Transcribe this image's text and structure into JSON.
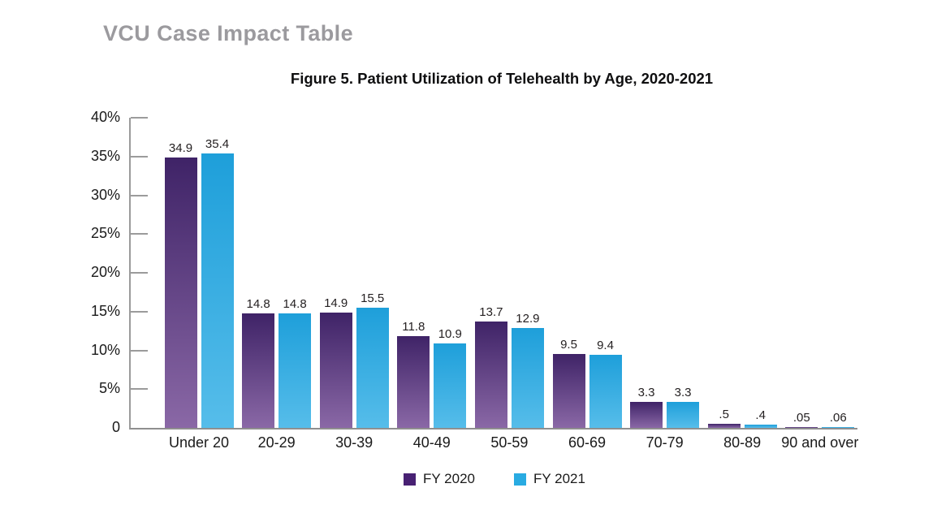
{
  "page": {
    "header": "VCU Case Impact Table"
  },
  "chart_data": {
    "type": "bar",
    "title": "Figure 5. Patient Utilization of Telehealth by Age, 2020-2021",
    "title_prefix": "Figure 5.",
    "title_rest": " Patient Utilization of Telehealth by Age, 2020-2021",
    "categories": [
      "Under 20",
      "20-29",
      "30-39",
      "40-49",
      "50-59",
      "60-69",
      "70-79",
      "80-89",
      "90 and over"
    ],
    "series": [
      {
        "name": "FY 2020",
        "color": "#482173",
        "gradient_top": "#3f2367",
        "gradient_bottom": "#8a68a6",
        "values": [
          34.9,
          14.8,
          14.9,
          11.8,
          13.7,
          9.5,
          3.3,
          0.5,
          0.05
        ],
        "value_labels": [
          "34.9",
          "14.8",
          "14.9",
          "11.8",
          "13.7",
          "9.5",
          "3.3",
          ".5",
          ".05"
        ]
      },
      {
        "name": "FY 2021",
        "color": "#29abe2",
        "gradient_top": "#1e9fda",
        "gradient_bottom": "#56bdea",
        "values": [
          35.4,
          14.8,
          15.5,
          10.9,
          12.9,
          9.4,
          3.3,
          0.4,
          0.06
        ],
        "value_labels": [
          "35.4",
          "14.8",
          "15.5",
          "10.9",
          "12.9",
          "9.4",
          "3.3",
          ".4",
          ".06"
        ]
      }
    ],
    "ylabel_ticks": [
      {
        "label": "40%",
        "value": 40
      },
      {
        "label": "35%",
        "value": 35
      },
      {
        "label": "30%",
        "value": 30
      },
      {
        "label": "25%",
        "value": 25
      },
      {
        "label": "20%",
        "value": 20
      },
      {
        "label": "15%",
        "value": 15
      },
      {
        "label": "10%",
        "value": 10
      },
      {
        "label": "5%",
        "value": 5
      },
      {
        "label": "0",
        "value": 0
      }
    ],
    "ylim": [
      0,
      40
    ],
    "xlabel": "",
    "ylabel": "",
    "grid": false,
    "legend_position": "bottom",
    "axis_color": "#9b9b9b"
  }
}
